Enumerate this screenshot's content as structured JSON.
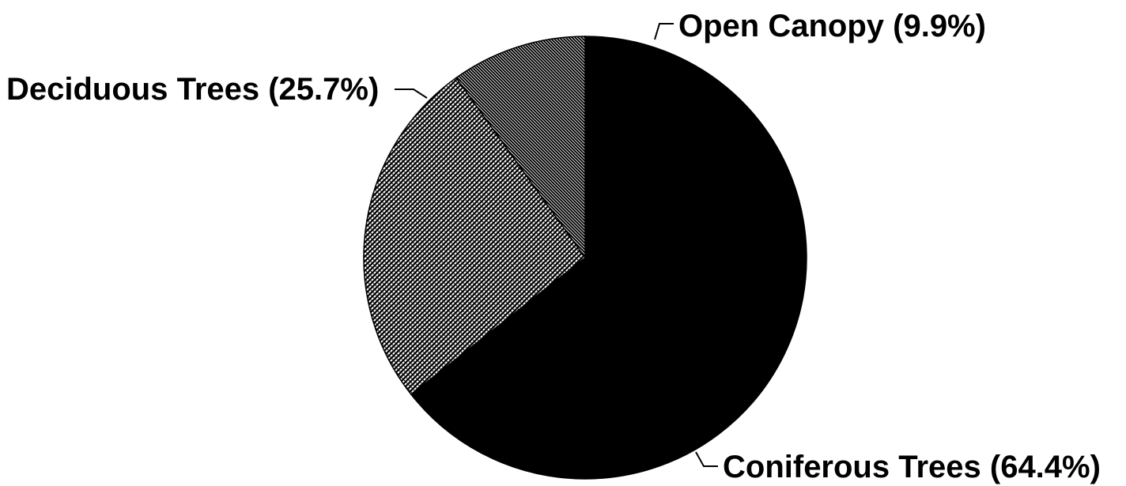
{
  "chart_data": {
    "type": "pie",
    "title": "",
    "start_angle_deg": 0,
    "direction": "clockwise",
    "slices": [
      {
        "name": "Coniferous Trees",
        "value": 64.4,
        "label": "Coniferous Trees (64.4%)",
        "pattern": "solid",
        "color": "#000000"
      },
      {
        "name": "Deciduous Trees",
        "value": 25.7,
        "label": "Deciduous Trees (25.7%)",
        "pattern": "dense-hatch",
        "color": "#000000"
      },
      {
        "name": "Open Canopy",
        "value": 9.9,
        "label": "Open Canopy (9.9%)",
        "pattern": "diagonal-hatch",
        "color": "#000000"
      }
    ]
  }
}
